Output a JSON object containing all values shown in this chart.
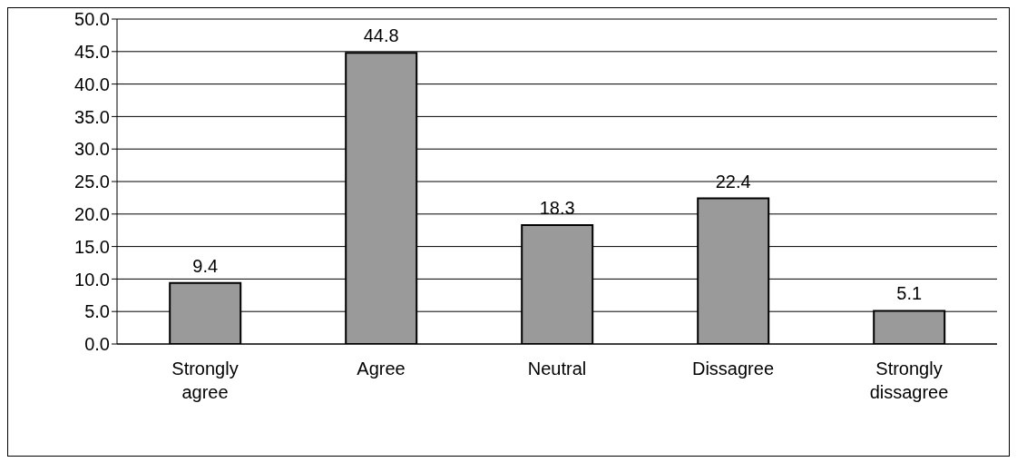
{
  "chart_data": {
    "type": "bar",
    "categories": [
      "Strongly agree",
      "Agree",
      "Neutral",
      "Dissagree",
      "Strongly dissagree"
    ],
    "values": [
      9.4,
      44.8,
      18.3,
      22.4,
      5.1
    ],
    "color": "#9a9a9a",
    "ylim": [
      0,
      50
    ],
    "yticks": [
      {
        "value": 0,
        "label": "0.0"
      },
      {
        "value": 5,
        "label": "5.0"
      },
      {
        "value": 10,
        "label": "10.0"
      },
      {
        "value": 15,
        "label": "15.0"
      },
      {
        "value": 20,
        "label": "20.0"
      },
      {
        "value": 25,
        "label": "25.0"
      },
      {
        "value": 30,
        "label": "30.0"
      },
      {
        "value": 35,
        "label": "35.0"
      },
      {
        "value": 40,
        "label": "40.0"
      },
      {
        "value": 45,
        "label": "45.0"
      },
      {
        "value": 50,
        "label": "50.0"
      }
    ],
    "grid": "y",
    "data_labels": true
  }
}
